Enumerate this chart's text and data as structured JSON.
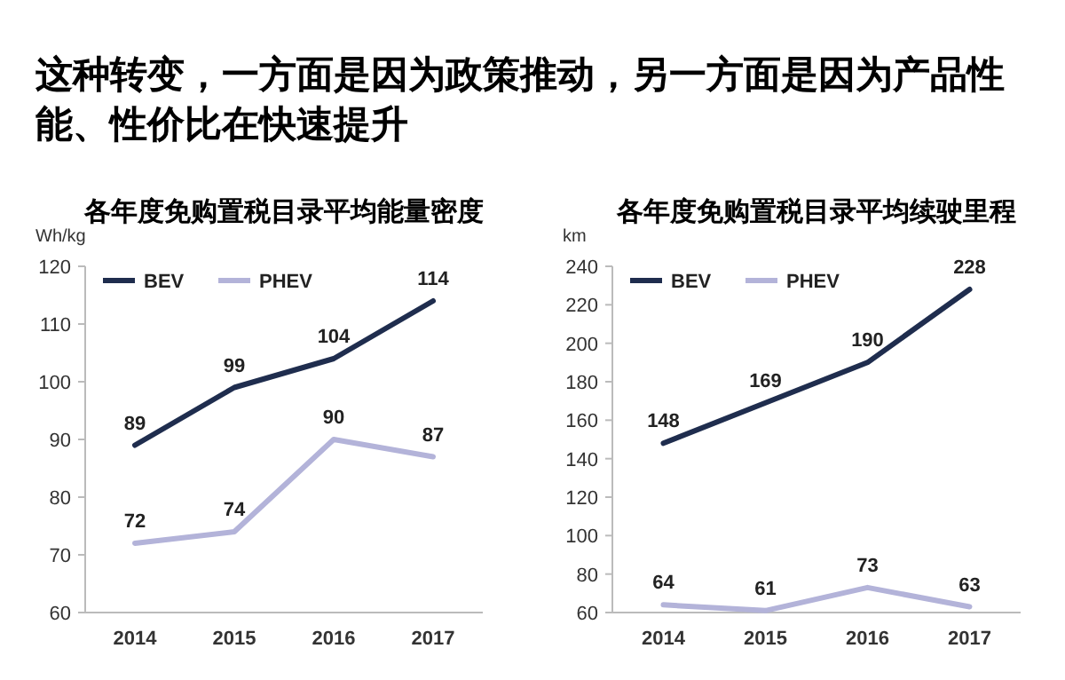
{
  "chart_data": [
    {
      "type": "line",
      "title": "各年度免购置税目录平均能量密度",
      "ylabel": "Wh/kg",
      "annotations": [
        "这种转变，一方面是因为政策推动，另一方面是因为产品性能、性价比在快速提升"
      ],
      "categories": [
        "2014",
        "2015",
        "2016",
        "2017"
      ],
      "ylim": [
        60,
        120
      ],
      "yticks": [
        60,
        70,
        80,
        90,
        100,
        110,
        120
      ],
      "legend": "top left",
      "data_labels": true,
      "marker": "none",
      "line_style": "solid",
      "grid": false,
      "series": [
        {
          "name": "BEV",
          "color": "#1f2d4e",
          "values": [
            89,
            99,
            104,
            114
          ]
        },
        {
          "name": "PHEV",
          "color": "#b3b3d9",
          "values": [
            72,
            74,
            90,
            87
          ]
        }
      ]
    },
    {
      "type": "line",
      "title": "各年度免购置税目录平均续驶里程",
      "ylabel": "km",
      "categories": [
        "2014",
        "2015",
        "2016",
        "2017"
      ],
      "ylim": [
        60,
        240
      ],
      "yticks": [
        60,
        80,
        100,
        120,
        140,
        160,
        180,
        200,
        220,
        240
      ],
      "legend": "top left",
      "data_labels": true,
      "marker": "none",
      "line_style": "solid",
      "grid": false,
      "series": [
        {
          "name": "BEV",
          "color": "#1f2d4e",
          "values": [
            148,
            169,
            190,
            228
          ]
        },
        {
          "name": "PHEV",
          "color": "#b3b3d9",
          "values": [
            64,
            61,
            73,
            63
          ]
        }
      ]
    }
  ]
}
